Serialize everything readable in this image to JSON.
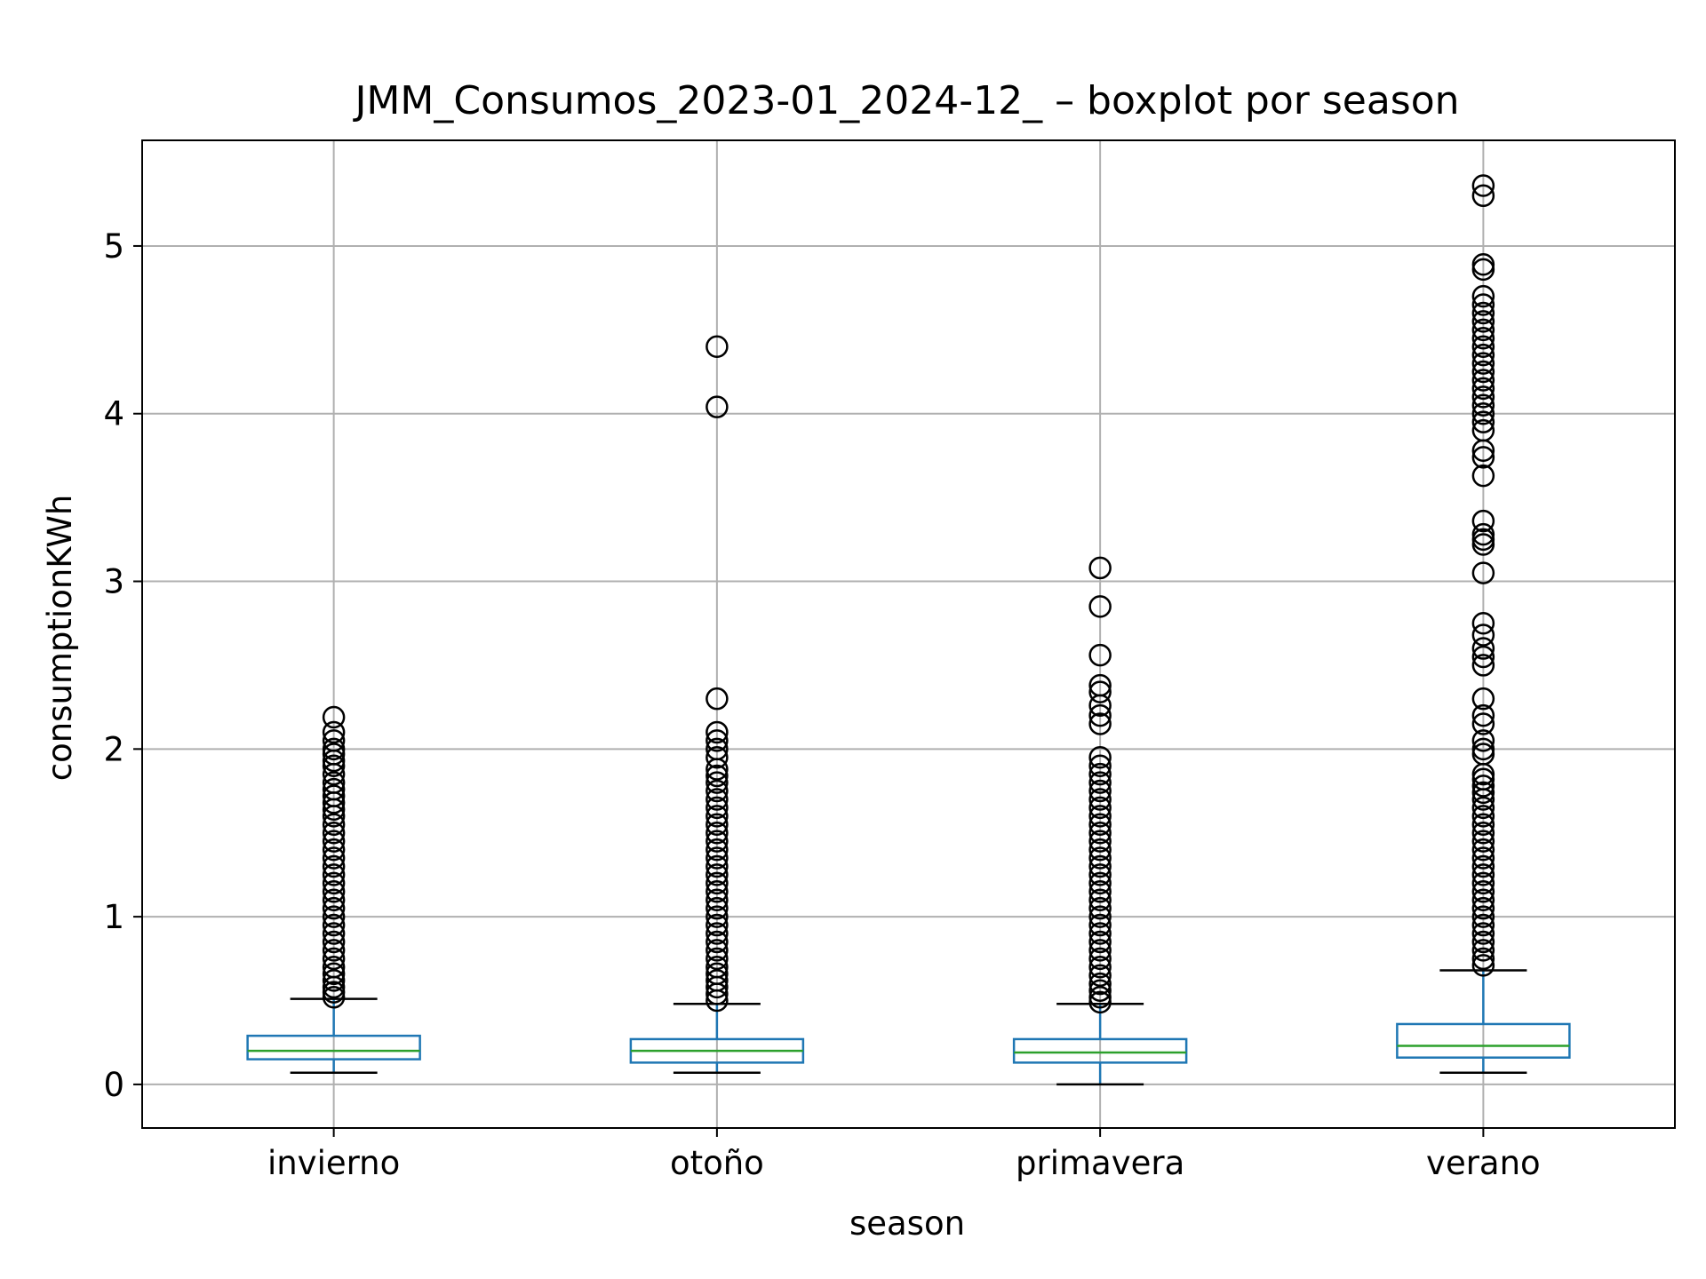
{
  "chart_data": {
    "type": "boxplot",
    "title": "JMM_Consumos_2023-01_2024-12_ – boxplot por season",
    "xlabel": "season",
    "ylabel": "consumptionKWh",
    "categories": [
      "invierno",
      "otoño",
      "primavera",
      "verano"
    ],
    "ylim": [
      -0.26,
      5.63
    ],
    "yticks": [
      0,
      1,
      2,
      3,
      4,
      5
    ],
    "grid": true,
    "colors": {
      "box": "#1f77b4",
      "median": "#2ca02c",
      "whisker_cap": "#000000",
      "outlier": "#000000",
      "grid": "#b0b0b0"
    },
    "boxes": [
      {
        "name": "invierno",
        "whisker_low": 0.07,
        "q1": 0.15,
        "median": 0.2,
        "q3": 0.29,
        "whisker_high": 0.51,
        "outliers": [
          2.19,
          2.1,
          2.05,
          2.0,
          1.97,
          1.93,
          1.9,
          1.85,
          1.8,
          1.76,
          1.72,
          1.68,
          1.64,
          1.6,
          1.55,
          1.5,
          1.45,
          1.4,
          1.35,
          1.3,
          1.25,
          1.2,
          1.15,
          1.1,
          1.05,
          1.0,
          0.95,
          0.9,
          0.85,
          0.8,
          0.75,
          0.7,
          0.66,
          0.62,
          0.58,
          0.55,
          0.52
        ]
      },
      {
        "name": "otoño",
        "whisker_low": 0.07,
        "q1": 0.13,
        "median": 0.2,
        "q3": 0.27,
        "whisker_high": 0.48,
        "outliers": [
          4.4,
          4.04,
          2.3,
          2.1,
          2.05,
          2.0,
          1.95,
          1.88,
          1.84,
          1.8,
          1.75,
          1.7,
          1.65,
          1.6,
          1.55,
          1.5,
          1.45,
          1.4,
          1.35,
          1.3,
          1.25,
          1.2,
          1.15,
          1.1,
          1.05,
          1.0,
          0.95,
          0.9,
          0.85,
          0.8,
          0.75,
          0.7,
          0.66,
          0.62,
          0.58,
          0.54,
          0.5
        ]
      },
      {
        "name": "primavera",
        "whisker_low": 0.0,
        "q1": 0.13,
        "median": 0.19,
        "q3": 0.27,
        "whisker_high": 0.48,
        "outliers": [
          3.08,
          2.85,
          2.56,
          2.38,
          2.34,
          2.26,
          2.2,
          2.15,
          1.95,
          1.9,
          1.85,
          1.8,
          1.75,
          1.7,
          1.65,
          1.6,
          1.55,
          1.5,
          1.45,
          1.4,
          1.35,
          1.3,
          1.25,
          1.2,
          1.15,
          1.1,
          1.05,
          1.0,
          0.95,
          0.9,
          0.85,
          0.8,
          0.75,
          0.7,
          0.65,
          0.6,
          0.56,
          0.52,
          0.49
        ]
      },
      {
        "name": "verano",
        "whisker_low": 0.07,
        "q1": 0.16,
        "median": 0.23,
        "q3": 0.36,
        "whisker_high": 0.68,
        "outliers": [
          5.36,
          5.3,
          4.89,
          4.86,
          4.7,
          4.65,
          4.6,
          4.55,
          4.5,
          4.45,
          4.4,
          4.35,
          4.3,
          4.25,
          4.2,
          4.15,
          4.1,
          4.05,
          4.0,
          3.95,
          3.9,
          3.78,
          3.74,
          3.63,
          3.36,
          3.28,
          3.25,
          3.22,
          3.05,
          2.75,
          2.68,
          2.6,
          2.55,
          2.5,
          2.3,
          2.2,
          2.15,
          2.05,
          2.0,
          1.97,
          1.85,
          1.82,
          1.78,
          1.74,
          1.7,
          1.65,
          1.6,
          1.55,
          1.5,
          1.45,
          1.4,
          1.35,
          1.3,
          1.25,
          1.2,
          1.15,
          1.1,
          1.05,
          1.0,
          0.95,
          0.9,
          0.85,
          0.8,
          0.75,
          0.71
        ]
      }
    ]
  }
}
